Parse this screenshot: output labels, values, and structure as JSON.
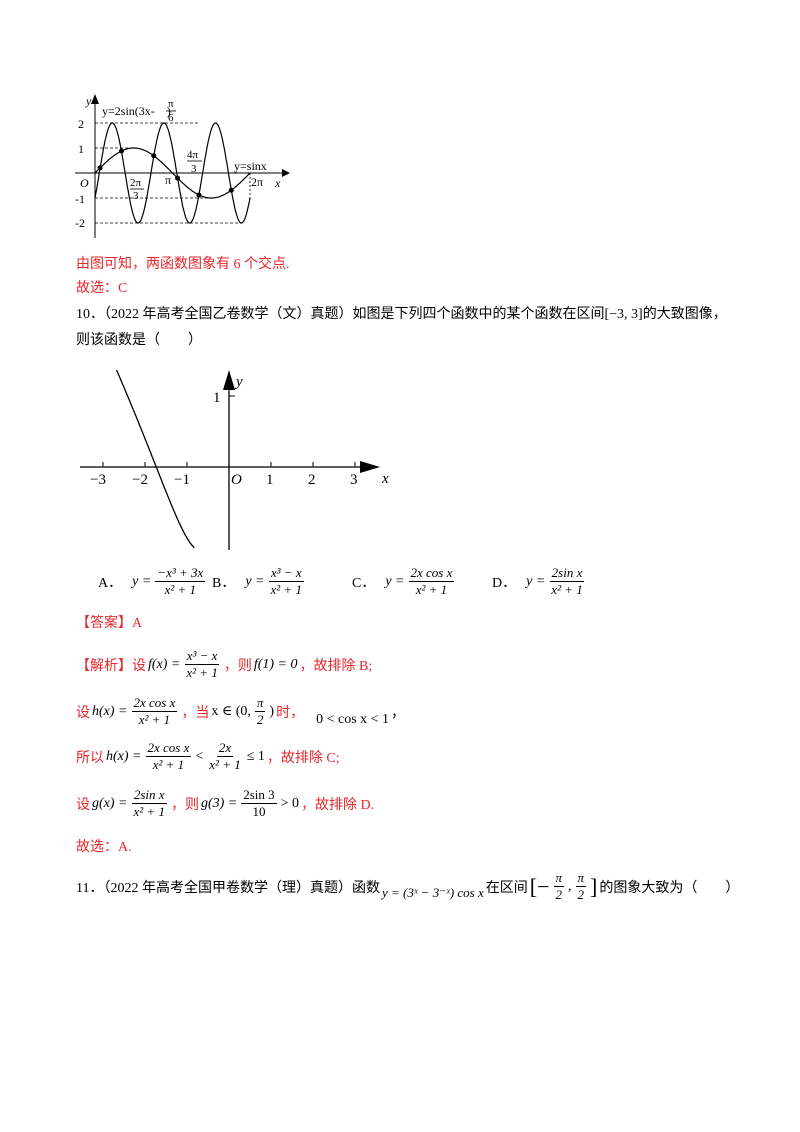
{
  "graph1": {
    "y_label": "y",
    "x_label": "x",
    "origin": "O",
    "curve1_label": "y=2sin(3x-",
    "curve1_frac": {
      "n": "π",
      "d": "6"
    },
    "curve1_close": ")",
    "curve2_label": "y=sinx",
    "ticks_y": [
      "2",
      "1",
      "-1",
      "-2"
    ],
    "tick_2pi3": {
      "n": "2π",
      "d": "3"
    },
    "tick_pi": "π",
    "tick_4pi3": {
      "n": "4π",
      "d": "3"
    },
    "tick_2pi": "2π"
  },
  "q9": {
    "conclusion": "由图可知，两函数图象有 6 个交点.",
    "choice": "故选：C"
  },
  "q10": {
    "text_a": "10．（2022 年高考全国乙卷数学（文）真题）如图是下列四个函数中的某个函数在区间",
    "interval": "[−3, 3]",
    "text_b": "的大致图像，",
    "text_c": "则该函数是（　　）",
    "graph": {
      "y_label": "y",
      "x_label": "x",
      "origin": "O",
      "x_ticks": [
        "−3",
        "−2",
        "−1",
        "1",
        "2",
        "3"
      ],
      "y_tick": "1"
    },
    "options": [
      {
        "label": "A．",
        "lhs": "y =",
        "n": "−x³ + 3x",
        "d": "x² + 1"
      },
      {
        "label": "B．",
        "lhs": "y =",
        "n": "x³ − x",
        "d": "x² + 1"
      },
      {
        "label": "C．",
        "lhs": "y =",
        "n": "2x cos x",
        "d": "x² + 1"
      },
      {
        "label": "D．",
        "lhs": "y =",
        "n": "2sin x",
        "d": "x² + 1"
      }
    ],
    "answer": "【答案】A",
    "analysis": {
      "l1": {
        "head": "【解析】设",
        "f": "f(x) =",
        "n": "x³ − x",
        "d": "x² + 1",
        "mid": "，则",
        "eq": "f(1) = 0",
        "tail": "，故排除 B;"
      },
      "l2": {
        "head": "设",
        "f": "h(x) =",
        "n": "2x cos x",
        "d": "x² + 1",
        "mid": "，当",
        "cond": "x ∈ (0,",
        "cn": "π",
        "cd": "2",
        "close": ")",
        "when": "时，",
        "ineq": "0 < cos x < 1",
        "end": "，"
      },
      "l3": {
        "head": "所以",
        "f": "h(x) =",
        "n": "2x cos x",
        "d": "x² + 1",
        "lt": "<",
        "n2": "2x",
        "d2": "x² + 1",
        "le": "≤ 1",
        "tail": "，故排除 C;"
      },
      "l4": {
        "head": "设",
        "f": "g(x) =",
        "n": "2sin x",
        "d": "x² + 1",
        "mid": "，则",
        "g3": "g(3) =",
        "n2": "2sin 3",
        "d2": "10",
        "gt": "> 0",
        "tail": "，故排除 D."
      },
      "choice": "故选：A."
    }
  },
  "q11": {
    "text_a": "11．（2022 年高考全国甲卷数学（理）真题）函数",
    "func": "y = (3ˣ − 3⁻ˣ) cos x",
    "text_b": "在区间",
    "int_open": "[−",
    "n1": "π",
    "d1": "2",
    "comma": ",",
    "n2": "π",
    "d2": "2",
    "int_close": "]",
    "text_c": "的图象大致为（　　）"
  }
}
